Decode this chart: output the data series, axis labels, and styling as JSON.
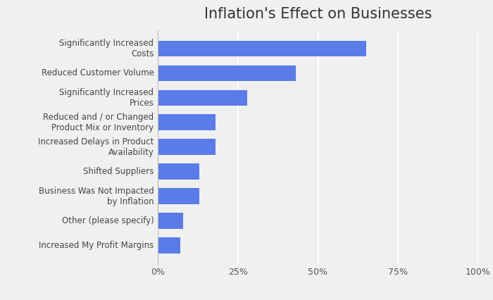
{
  "title": "Inflation's Effect on Businesses",
  "categories": [
    "Increased My Profit Margins",
    "Other (please specify)",
    "Business Was Not Impacted\nby Inflation",
    "Shifted Suppliers",
    "Increased Delays in Product\nAvailability",
    "Reduced and / or Changed\nProduct Mix or Inventory",
    "Significantly Increased\nPrices",
    "Reduced Customer Volume",
    "Significantly Increased\nCosts"
  ],
  "values": [
    7,
    8,
    13,
    13,
    18,
    18,
    28,
    43,
    65
  ],
  "bar_color": "#5b7be8",
  "background_color": "#f0f0f0",
  "title_color": "#333333",
  "label_color": "#444444",
  "tick_color": "#555555",
  "grid_color": "#ffffff",
  "xlim": [
    0,
    100
  ],
  "xticks": [
    0,
    25,
    50,
    75,
    100
  ],
  "xtick_labels": [
    "0%",
    "25%",
    "50%",
    "75%",
    "100%"
  ],
  "title_fontsize": 15,
  "label_fontsize": 8.5,
  "tick_fontsize": 9
}
